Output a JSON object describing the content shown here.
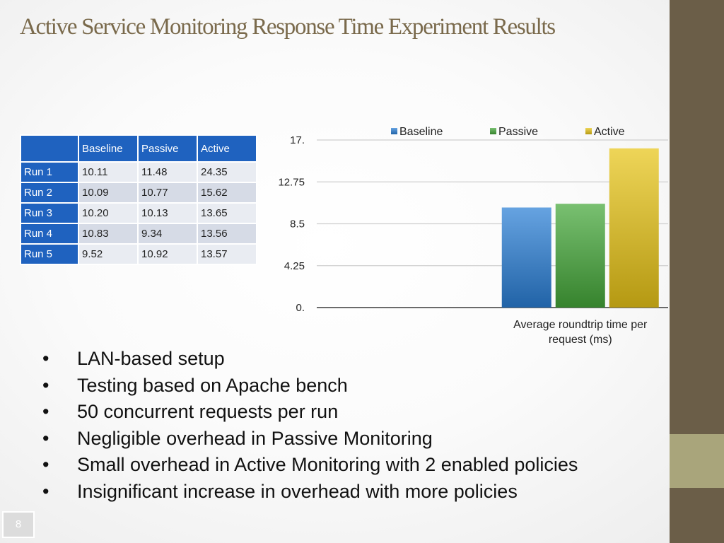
{
  "slide": {
    "title": "Active Service Monitoring Response Time Experiment Results",
    "page_number": "8",
    "colors": {
      "sidebar": "#6b5e48",
      "sidebar_accent": "#a9a57b",
      "title": "#7a6a4c",
      "table_header": "#1f62bf"
    }
  },
  "table": {
    "headers": [
      "",
      "Baseline",
      "Passive",
      "Active"
    ],
    "rows": [
      {
        "label": "Run 1",
        "cells": [
          "10.11",
          "11.48",
          "24.35"
        ]
      },
      {
        "label": "Run 2",
        "cells": [
          "10.09",
          "10.77",
          "15.62"
        ]
      },
      {
        "label": "Run 3",
        "cells": [
          "10.20",
          "10.13",
          "13.65"
        ]
      },
      {
        "label": "Run 4",
        "cells": [
          "10.83",
          "9.34",
          "13.56"
        ]
      },
      {
        "label": "Run 5",
        "cells": [
          "9.52",
          "10.92",
          "13.57"
        ]
      }
    ]
  },
  "chart_data": {
    "type": "bar",
    "categories": [
      "Average roundtrip time per request (ms)"
    ],
    "series": [
      {
        "name": "Baseline",
        "values": [
          10.15
        ],
        "color": "#2a7fd6"
      },
      {
        "name": "Passive",
        "values": [
          10.53
        ],
        "color": "#45a83a"
      },
      {
        "name": "Active",
        "values": [
          16.15
        ],
        "color": "#e8c417"
      }
    ],
    "ylim": [
      0,
      17
    ],
    "yticks": [
      "0.",
      "4.25",
      "8.5",
      "12.75",
      "17."
    ],
    "grid": true,
    "legend": "top"
  },
  "bullets": [
    "LAN-based setup",
    "Testing based on Apache bench",
    "50 concurrent requests per run",
    "Negligible overhead in Passive Monitoring",
    "Small overhead in Active Monitoring with 2 enabled policies",
    "Insignificant increase in overhead with more policies"
  ],
  "bullet_marker": "•"
}
